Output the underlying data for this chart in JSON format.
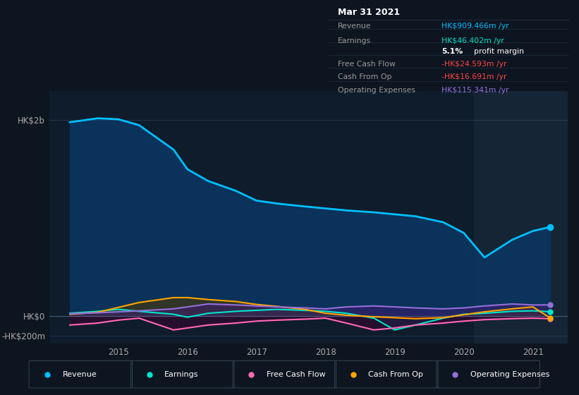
{
  "background_color": "#0d1520",
  "chart_area_color": "#0e1c2b",
  "highlight_area_color": "#152535",
  "years": [
    2014.3,
    2014.7,
    2015.0,
    2015.3,
    2015.8,
    2016.0,
    2016.3,
    2016.7,
    2017.0,
    2017.3,
    2017.7,
    2018.0,
    2018.3,
    2018.7,
    2019.0,
    2019.3,
    2019.7,
    2020.0,
    2020.3,
    2020.7,
    2021.0,
    2021.25
  ],
  "revenue": [
    1980,
    2020,
    2010,
    1950,
    1700,
    1500,
    1380,
    1280,
    1180,
    1150,
    1120,
    1100,
    1080,
    1060,
    1040,
    1020,
    960,
    850,
    600,
    780,
    870,
    910
  ],
  "earnings": [
    30,
    50,
    70,
    50,
    20,
    -10,
    30,
    50,
    60,
    70,
    60,
    50,
    30,
    -20,
    -140,
    -90,
    -20,
    20,
    30,
    50,
    55,
    46
  ],
  "free_cash_flow": [
    -90,
    -70,
    -40,
    -20,
    -140,
    -120,
    -90,
    -70,
    -50,
    -40,
    -30,
    -20,
    -70,
    -140,
    -120,
    -90,
    -70,
    -50,
    -35,
    -25,
    -20,
    -25
  ],
  "cash_from_op": [
    20,
    40,
    90,
    140,
    190,
    190,
    170,
    150,
    120,
    100,
    70,
    30,
    10,
    -5,
    -15,
    -25,
    -15,
    15,
    45,
    75,
    95,
    -17
  ],
  "operating_expenses": [
    25,
    35,
    45,
    55,
    75,
    95,
    125,
    115,
    105,
    95,
    85,
    75,
    95,
    105,
    95,
    85,
    75,
    85,
    105,
    125,
    115,
    115
  ],
  "revenue_color": "#00bfff",
  "earnings_color": "#00e5cc",
  "free_cash_flow_color": "#ff69b4",
  "cash_from_op_color": "#ffa500",
  "operating_expenses_color": "#9370db",
  "xlim": [
    2014.0,
    2021.5
  ],
  "ylim": [
    -280,
    2300
  ],
  "ytick_labels": [
    "HK$2b",
    "HK$0",
    "-HK$200m"
  ],
  "ytick_values": [
    2000,
    0,
    -200
  ],
  "xtick_labels": [
    "2015",
    "2016",
    "2017",
    "2018",
    "2019",
    "2020",
    "2021"
  ],
  "xtick_values": [
    2015,
    2016,
    2017,
    2018,
    2019,
    2020,
    2021
  ],
  "info_box": {
    "title": "Mar 31 2021",
    "rows": [
      {
        "label": "Revenue",
        "value": "HK$909.466m /yr",
        "value_color": "#00bfff"
      },
      {
        "label": "Earnings",
        "value": "HK$46.402m /yr",
        "value_color": "#00e5cc"
      },
      {
        "label": "",
        "value": "5.1% profit margin",
        "value_color": "#ffffff"
      },
      {
        "label": "Free Cash Flow",
        "value": "-HK$24.593m /yr",
        "value_color": "#ff4444"
      },
      {
        "label": "Cash From Op",
        "value": "-HK$16.691m /yr",
        "value_color": "#ff4444"
      },
      {
        "label": "Operating Expenses",
        "value": "HK$115.341m /yr",
        "value_color": "#9370db"
      }
    ]
  },
  "legend_items": [
    {
      "label": "Revenue",
      "color": "#00bfff"
    },
    {
      "label": "Earnings",
      "color": "#00e5cc"
    },
    {
      "label": "Free Cash Flow",
      "color": "#ff69b4"
    },
    {
      "label": "Cash From Op",
      "color": "#ffa500"
    },
    {
      "label": "Operating Expenses",
      "color": "#9370db"
    }
  ],
  "highlight_x_start": 2020.15,
  "highlight_x_end": 2021.5,
  "dot_x": 2021.25,
  "dot_revenue": 910,
  "dot_earnings": 46,
  "dot_free_cash_flow": -25,
  "dot_cash_from_op": -17,
  "dot_operating_expenses": 115
}
